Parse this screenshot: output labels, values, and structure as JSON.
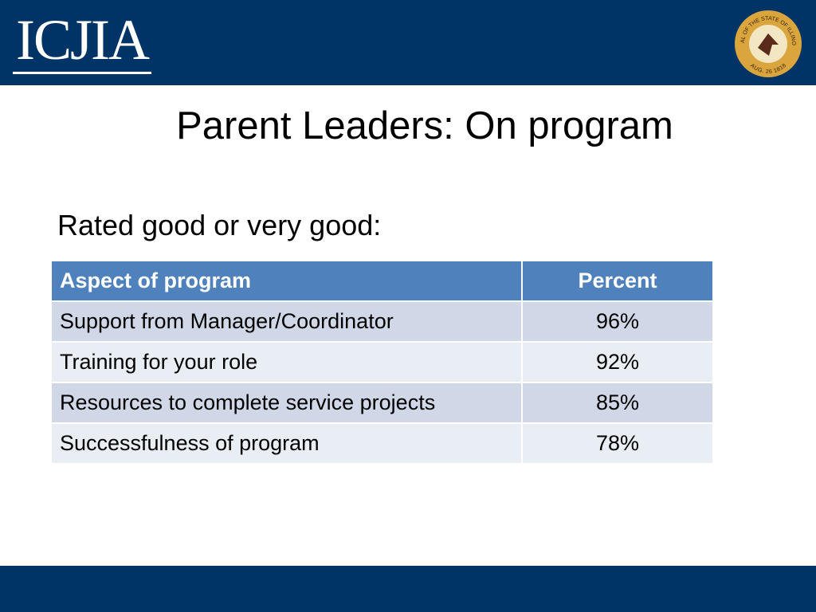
{
  "header": {
    "logo": "ICJIA",
    "seal_top": "SEAL OF THE STATE OF ILLINOIS",
    "seal_bottom": "AUG. 26 1818"
  },
  "title": "Parent Leaders: On program",
  "subtitle": "Rated good or very good:",
  "table": {
    "columns": [
      "Aspect of program",
      "Percent"
    ],
    "rows": [
      [
        "Support from Manager/Coordinator",
        "96%"
      ],
      [
        "Training for your role",
        "92%"
      ],
      [
        "Resources to complete service projects",
        "85%"
      ],
      [
        "Successfulness of program",
        "78%"
      ]
    ]
  }
}
